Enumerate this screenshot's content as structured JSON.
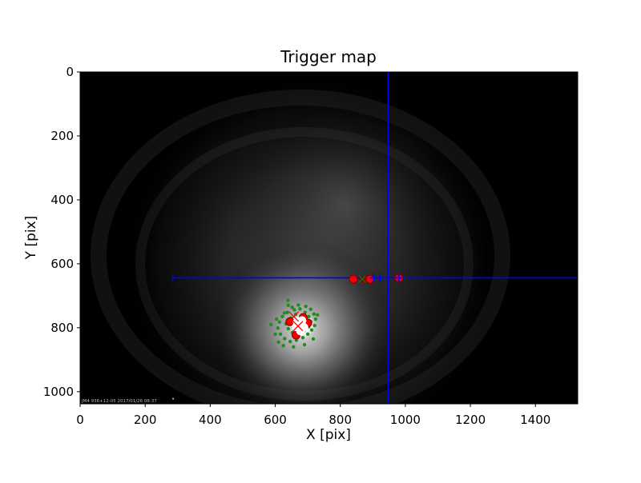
{
  "figure": {
    "title": "Trigger map",
    "xlabel": "X [pix]",
    "ylabel": "Y [pix]",
    "overlay_text": "JM4 936+12-05 2017/01/26 08:37"
  },
  "chart_data": {
    "type": "scatter",
    "title": "Trigger map",
    "xlabel": "X [pix]",
    "ylabel": "Y [pix]",
    "xlim": [
      0,
      1530
    ],
    "ylim": [
      0,
      1038
    ],
    "y_inverted_image_convention": true,
    "xticks": [
      0,
      200,
      400,
      600,
      800,
      1000,
      1200,
      1400
    ],
    "yticks": [
      0,
      200,
      400,
      600,
      800,
      1000
    ],
    "grid": false,
    "legend": "none",
    "background": {
      "description": "grayscale camera image: black field with diffuse circular glow, bright white core at cluster",
      "glow_center": [
        670,
        800
      ],
      "disk_center": [
        715,
        600
      ]
    },
    "crosshair": {
      "color": "#0000ff",
      "vline_x": 947,
      "hline_y": 644,
      "hline_x_start": 285,
      "hline_x_end": 1530
    },
    "series": [
      {
        "name": "triggered-pixels-green",
        "marker": "circle",
        "color": "#218c21",
        "edge": "none",
        "size": 2.2,
        "points": [
          [
            639,
            714
          ],
          [
            604,
            773
          ],
          [
            628,
            754
          ],
          [
            652,
            736
          ],
          [
            671,
            729
          ],
          [
            694,
            733
          ],
          [
            709,
            742
          ],
          [
            719,
            757
          ],
          [
            724,
            773
          ],
          [
            721,
            793
          ],
          [
            712,
            807
          ],
          [
            700,
            820
          ],
          [
            685,
            831
          ],
          [
            665,
            839
          ],
          [
            646,
            843
          ],
          [
            629,
            834
          ],
          [
            616,
            820
          ],
          [
            608,
            801
          ],
          [
            613,
            782
          ],
          [
            622,
            765
          ],
          [
            637,
            752
          ],
          [
            659,
            744
          ],
          [
            676,
            741
          ],
          [
            692,
            752
          ],
          [
            703,
            765
          ],
          [
            709,
            781
          ],
          [
            703,
            797
          ],
          [
            690,
            809
          ],
          [
            672,
            818
          ],
          [
            653,
            815
          ],
          [
            640,
            803
          ],
          [
            633,
            788
          ],
          [
            648,
            770
          ],
          [
            663,
            758
          ],
          [
            683,
            763
          ],
          [
            697,
            789
          ],
          [
            666,
            800
          ],
          [
            587,
            790
          ],
          [
            600,
            820
          ],
          [
            625,
            856
          ],
          [
            656,
            860
          ],
          [
            690,
            853
          ],
          [
            717,
            835
          ],
          [
            640,
            730
          ],
          [
            730,
            760
          ],
          [
            610,
            845
          ]
        ]
      },
      {
        "name": "dark-red-squares",
        "marker": "square",
        "color": "#8b0000",
        "edge": "none",
        "size": 7,
        "points": [
          [
            868,
            648
          ],
          [
            877,
            649
          ]
        ]
      },
      {
        "name": "green-x-markers",
        "marker": "x",
        "color": "#008000",
        "edge": "none",
        "size": 8,
        "points": [
          [
            868,
            648
          ]
        ]
      },
      {
        "name": "red-hotspot-circles",
        "marker": "circle",
        "color": "#f50000",
        "edge": "#7e0000",
        "size": 5,
        "points": [
          [
            645,
            781
          ],
          [
            686,
            768
          ],
          [
            700,
            785
          ],
          [
            664,
            823
          ],
          [
            681,
            801
          ],
          [
            840,
            648
          ],
          [
            891,
            648
          ],
          [
            980,
            644
          ]
        ]
      },
      {
        "name": "white-core-markers",
        "marker": "circle",
        "color": "#ffffff",
        "edge": "none",
        "size": 5.5,
        "points": [
          [
            668,
            782
          ],
          [
            682,
            778
          ],
          [
            675,
            795
          ],
          [
            688,
            799
          ],
          [
            678,
            810
          ],
          [
            665,
            797
          ]
        ]
      },
      {
        "name": "red-x-markers",
        "marker": "x",
        "color": "#ff0000",
        "edge": "none",
        "size": 12,
        "points": [
          [
            657,
            765
          ],
          [
            670,
            795
          ]
        ]
      },
      {
        "name": "blue-plus-markers",
        "marker": "plus",
        "color": "#0000ff",
        "edge": "none",
        "size": 9,
        "points": [
          [
            903,
            644
          ],
          [
            922,
            644
          ],
          [
            980,
            644
          ]
        ]
      },
      {
        "name": "faint-white-dot",
        "marker": "circle",
        "color": "#cccccc",
        "edge": "none",
        "size": 1,
        "points": [
          [
            286,
            1022
          ]
        ]
      }
    ]
  },
  "colors": {
    "crosshair_blue": "#0000ff",
    "marker_green": "#218c21",
    "marker_red": "#f50000",
    "marker_white": "#ffffff",
    "image_black": "#000000",
    "page_background": "#ffffff"
  }
}
